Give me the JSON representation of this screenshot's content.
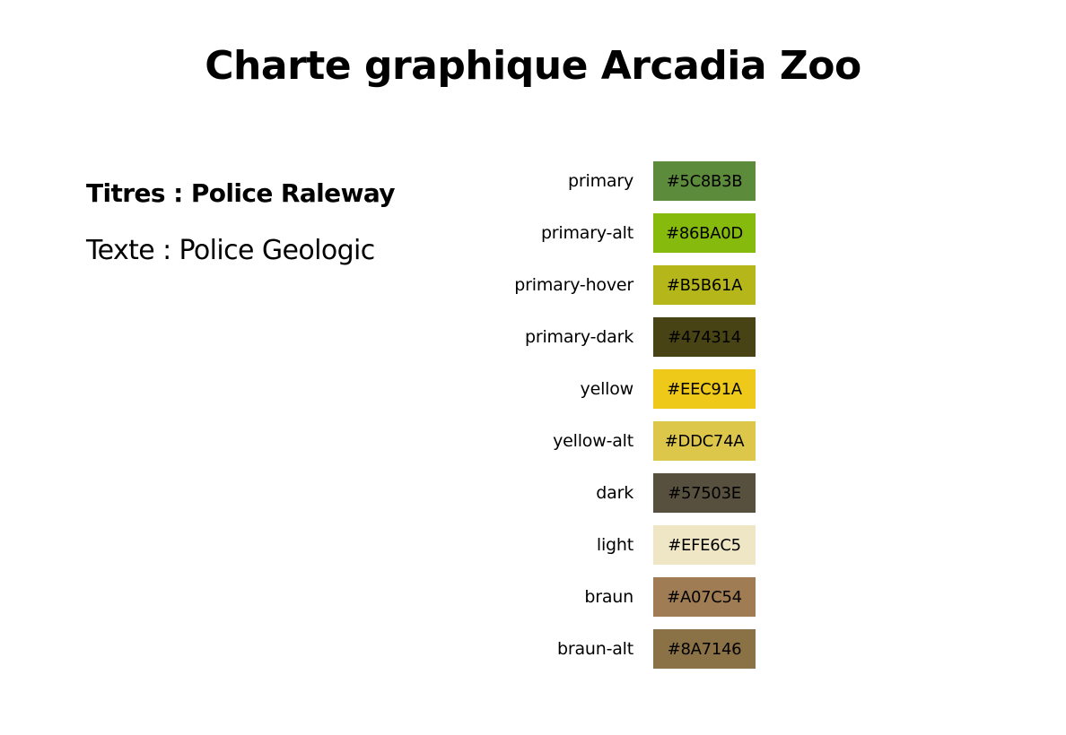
{
  "title": "Charte graphique Arcadia Zoo",
  "fonts": {
    "titles": "Titres : Police Raleway",
    "text": "Texte : Police Geologic"
  },
  "palette": [
    {
      "name": "primary",
      "hex": "#5C8B3B",
      "color": "#5C8B3B"
    },
    {
      "name": "primary-alt",
      "hex": "#86BA0D",
      "color": "#86BA0D"
    },
    {
      "name": "primary-hover",
      "hex": "#B5B61A",
      "color": "#B5B61A"
    },
    {
      "name": "primary-dark",
      "hex": "#474314",
      "color": "#474314"
    },
    {
      "name": "yellow",
      "hex": "#EEC91A",
      "color": "#EEC91A"
    },
    {
      "name": "yellow-alt",
      "hex": "#DDC74A",
      "color": "#DDC74A"
    },
    {
      "name": "dark",
      "hex": "#57503E",
      "color": "#57503E"
    },
    {
      "name": "light",
      "hex": "#EFE6C5",
      "color": "#EFE6C5"
    },
    {
      "name": "braun",
      "hex": "#A07C54",
      "color": "#A07C54"
    },
    {
      "name": "braun-alt",
      "hex": "#8A7146",
      "color": "#8A7146"
    }
  ]
}
